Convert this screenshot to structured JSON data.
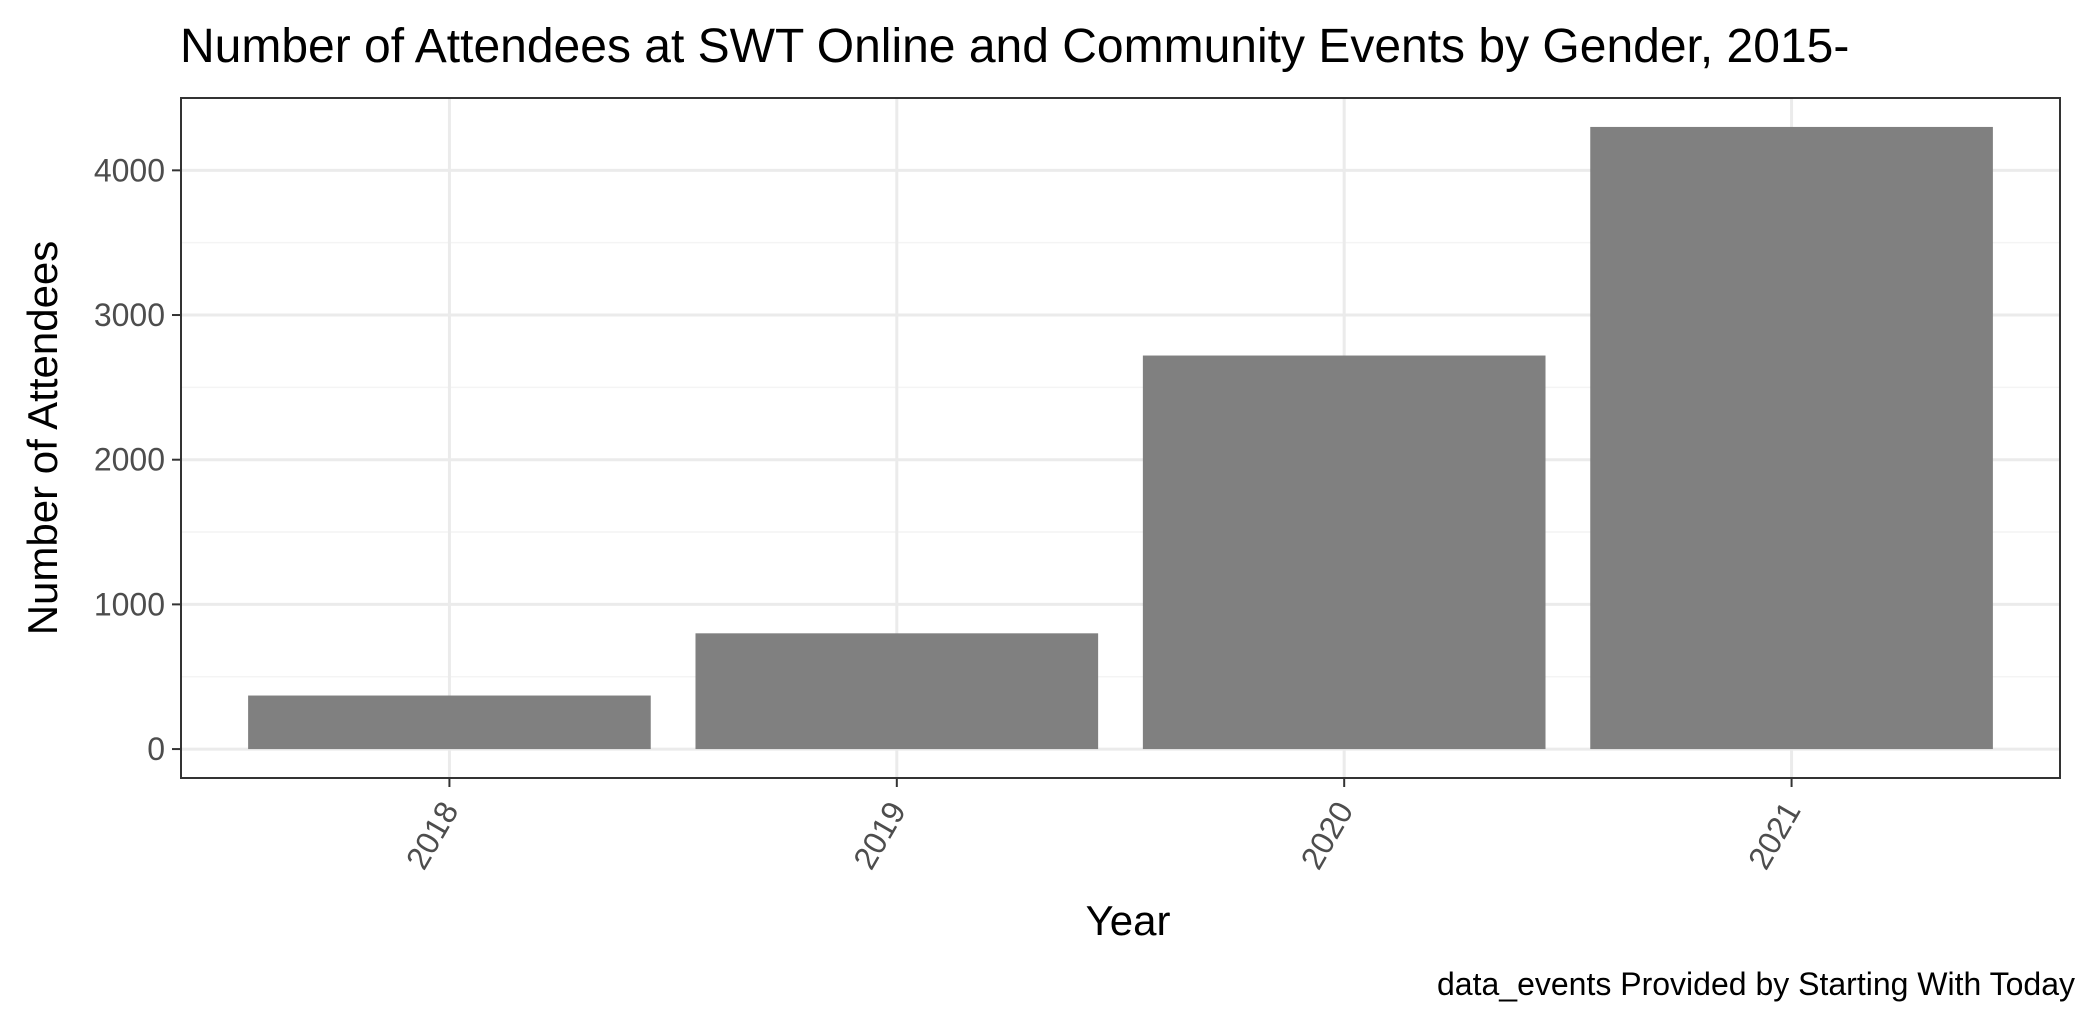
{
  "chart_data": {
    "type": "bar",
    "title": "Number of Attendees at SWT Online and Community Events by Gender, 2015-",
    "xlabel": "Year",
    "ylabel": "Number of Attendees",
    "caption": "data_events Provided by Starting With Today",
    "categories": [
      "2018",
      "2019",
      "2020",
      "2021"
    ],
    "values": [
      370,
      800,
      2720,
      4300
    ],
    "ylim": [
      -200,
      4500
    ],
    "yticks": [
      0,
      1000,
      2000,
      3000,
      4000
    ],
    "grid": true,
    "legend": "none",
    "colors": {
      "bar": "#808080",
      "grid_major": "#ebebeb",
      "grid_minor": "#f4f4f4",
      "panel_border": "#333333",
      "tick_label": "#4d4d4d",
      "text": "#000000"
    }
  }
}
